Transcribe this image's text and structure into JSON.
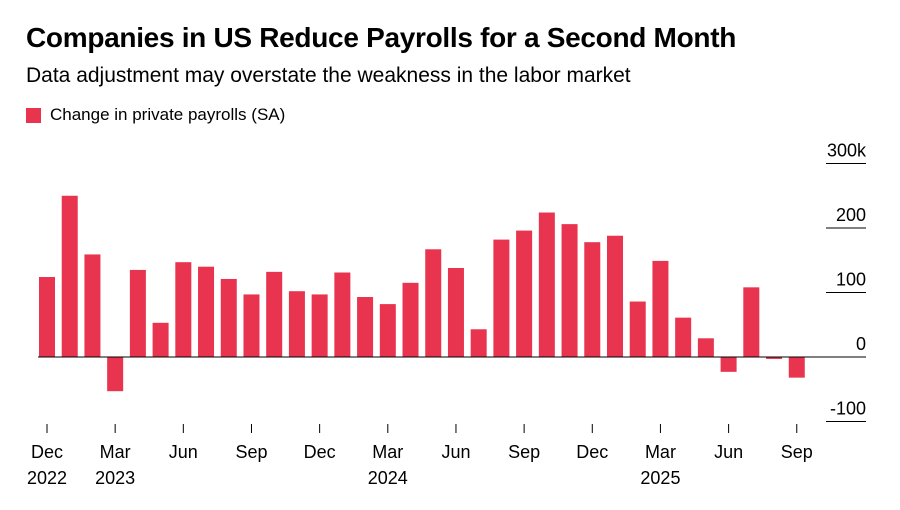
{
  "title": "Companies in US Reduce Payrolls for a Second Month",
  "subtitle": "Data adjustment may overstate the weakness in the labor market",
  "colors": {
    "bar": "#e8344e",
    "axis": "#000000"
  },
  "chart_data": {
    "type": "bar",
    "legend": {
      "label": "Change in private payrolls (SA)",
      "placement": "top-left"
    },
    "y_axis": {
      "side": "right",
      "ticks": [
        300,
        200,
        100,
        0,
        -100
      ],
      "tick_labels": [
        "300k",
        "200",
        "100",
        "0",
        "-100"
      ],
      "ylim": [
        -100,
        300
      ]
    },
    "x_tick_labels": [
      {
        "index": 0,
        "month": "Dec",
        "year": "2022"
      },
      {
        "index": 3,
        "month": "Mar",
        "year": "2023"
      },
      {
        "index": 6,
        "month": "Jun",
        "year": ""
      },
      {
        "index": 9,
        "month": "Sep",
        "year": ""
      },
      {
        "index": 12,
        "month": "Dec",
        "year": ""
      },
      {
        "index": 15,
        "month": "Mar",
        "year": "2024"
      },
      {
        "index": 18,
        "month": "Jun",
        "year": ""
      },
      {
        "index": 21,
        "month": "Sep",
        "year": ""
      },
      {
        "index": 24,
        "month": "Dec",
        "year": ""
      },
      {
        "index": 27,
        "month": "Mar",
        "year": "2025"
      },
      {
        "index": 30,
        "month": "Jun",
        "year": ""
      },
      {
        "index": 33,
        "month": "Sep",
        "year": ""
      }
    ],
    "categories": [
      "Dec 2022",
      "Jan 2023",
      "Feb 2023",
      "Mar 2023",
      "Apr 2023",
      "May 2023",
      "Jun 2023",
      "Jul 2023",
      "Aug 2023",
      "Sep 2023",
      "Oct 2023",
      "Nov 2023",
      "Dec 2023",
      "Jan 2024",
      "Feb 2024",
      "Mar 2024",
      "Apr 2024",
      "May 2024",
      "Jun 2024",
      "Jul 2024",
      "Aug 2024",
      "Sep 2024",
      "Oct 2024",
      "Nov 2024",
      "Dec 2024",
      "Jan 2025",
      "Feb 2025",
      "Mar 2025",
      "Apr 2025",
      "May 2025",
      "Jun 2025",
      "Jul 2025",
      "Aug 2025",
      "Sep 2025"
    ],
    "values": [
      124,
      250,
      159,
      -53,
      135,
      53,
      147,
      140,
      121,
      97,
      132,
      102,
      97,
      131,
      93,
      82,
      115,
      167,
      138,
      43,
      182,
      196,
      224,
      206,
      178,
      188,
      86,
      149,
      61,
      29,
      -23,
      108,
      -3,
      -32
    ],
    "grid": false
  }
}
